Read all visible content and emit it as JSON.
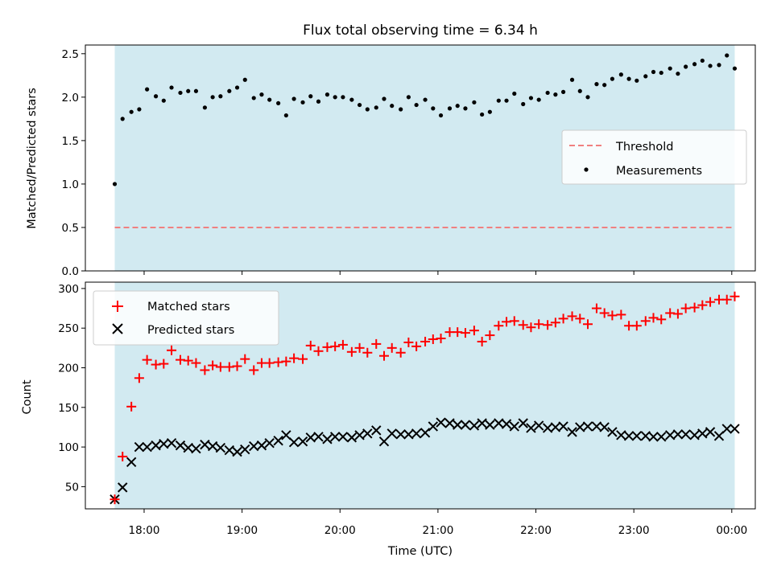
{
  "chart_data": {
    "title": "Flux total observing time = 6.34 h",
    "xlabel": "Time (UTC)",
    "x_ticks": [
      "18:00",
      "19:00",
      "20:00",
      "21:00",
      "22:00",
      "23:00",
      "00:00"
    ],
    "x_range_hours": [
      17.4,
      24.24
    ],
    "observing_window_hours": [
      17.7,
      24.03
    ],
    "colors": {
      "window": "#add8e6",
      "measurements": "#000000",
      "threshold": "#f08080",
      "matched": "#ff0000",
      "predicted": "#000000"
    },
    "panels": [
      {
        "type": "scatter",
        "ylabel": "Matched/Predicted stars",
        "ylim": [
          0,
          2.6
        ],
        "y_ticks": [
          "0.0",
          "0.5",
          "1.0",
          "1.5",
          "2.0",
          "2.5"
        ],
        "threshold": 0.5,
        "legend": {
          "placement": "center-right",
          "entries": [
            "Threshold",
            "Measurements"
          ]
        },
        "series": [
          {
            "name": "Measurements",
            "x": [
              17.7,
              17.78,
              17.87,
              17.95,
              18.03,
              18.12,
              18.2,
              18.28,
              18.37,
              18.45,
              18.53,
              18.62,
              18.7,
              18.78,
              18.87,
              18.95,
              19.03,
              19.12,
              19.2,
              19.28,
              19.37,
              19.45,
              19.53,
              19.62,
              19.7,
              19.78,
              19.87,
              19.95,
              20.03,
              20.12,
              20.2,
              20.28,
              20.37,
              20.45,
              20.53,
              20.62,
              20.7,
              20.78,
              20.87,
              20.95,
              21.03,
              21.12,
              21.2,
              21.28,
              21.37,
              21.45,
              21.53,
              21.62,
              21.7,
              21.78,
              21.87,
              21.95,
              22.03,
              22.12,
              22.2,
              22.28,
              22.37,
              22.45,
              22.53,
              22.62,
              22.7,
              22.78,
              22.87,
              22.95,
              23.03,
              23.12,
              23.2,
              23.28,
              23.37,
              23.45,
              23.53,
              23.62,
              23.7,
              23.78,
              23.87,
              23.95,
              24.03
            ],
            "y": [
              1.0,
              1.75,
              1.83,
              1.86,
              2.09,
              2.01,
              1.96,
              2.11,
              2.05,
              2.07,
              2.07,
              1.88,
              2.0,
              2.01,
              2.07,
              2.11,
              2.2,
              1.99,
              2.03,
              1.97,
              1.93,
              1.79,
              1.98,
              1.94,
              2.01,
              1.95,
              2.03,
              2.0,
              2.0,
              1.97,
              1.91,
              1.86,
              1.88,
              1.98,
              1.9,
              1.86,
              2.0,
              1.91,
              1.97,
              1.87,
              1.79,
              1.87,
              1.9,
              1.87,
              1.94,
              1.8,
              1.83,
              1.96,
              1.96,
              2.04,
              1.92,
              1.99,
              1.97,
              2.05,
              2.03,
              2.06,
              2.2,
              2.07,
              2.0,
              2.15,
              2.14,
              2.21,
              2.26,
              2.21,
              2.19,
              2.24,
              2.29,
              2.28,
              2.33,
              2.27,
              2.35,
              2.38,
              2.42,
              2.36,
              2.37,
              2.48,
              2.33
            ]
          }
        ]
      },
      {
        "type": "scatter",
        "ylabel": "Count",
        "ylim": [
          22,
          308
        ],
        "y_ticks": [
          "50",
          "100",
          "150",
          "200",
          "250",
          "300"
        ],
        "legend": {
          "placement": "top-left",
          "entries": [
            "Matched stars",
            "Predicted stars"
          ]
        },
        "series": [
          {
            "name": "Matched stars",
            "marker": "plus",
            "x": [
              17.7,
              17.78,
              17.87,
              17.95,
              18.03,
              18.12,
              18.2,
              18.28,
              18.37,
              18.45,
              18.53,
              18.62,
              18.7,
              18.78,
              18.87,
              18.95,
              19.03,
              19.12,
              19.2,
              19.28,
              19.37,
              19.45,
              19.53,
              19.62,
              19.7,
              19.78,
              19.87,
              19.95,
              20.03,
              20.12,
              20.2,
              20.28,
              20.37,
              20.45,
              20.53,
              20.62,
              20.7,
              20.78,
              20.87,
              20.95,
              21.03,
              21.12,
              21.2,
              21.28,
              21.37,
              21.45,
              21.53,
              21.62,
              21.7,
              21.78,
              21.87,
              21.95,
              22.03,
              22.12,
              22.2,
              22.28,
              22.37,
              22.45,
              22.53,
              22.62,
              22.7,
              22.78,
              22.87,
              22.95,
              23.03,
              23.12,
              23.2,
              23.28,
              23.37,
              23.45,
              23.53,
              23.62,
              23.7,
              23.78,
              23.87,
              23.95,
              24.03
            ],
            "y": [
              34,
              88,
              151,
              187,
              210,
              204,
              205,
              222,
              210,
              209,
              206,
              197,
              203,
              201,
              201,
              202,
              211,
              197,
              206,
              206,
              207,
              208,
              212,
              211,
              228,
              221,
              226,
              227,
              229,
              220,
              225,
              219,
              230,
              215,
              225,
              219,
              232,
              227,
              233,
              236,
              237,
              245,
              245,
              244,
              247,
              233,
              241,
              253,
              258,
              259,
              254,
              251,
              255,
              254,
              257,
              262,
              265,
              262,
              255,
              275,
              269,
              266,
              267,
              253,
              253,
              259,
              263,
              261,
              269,
              268,
              275,
              276,
              279,
              283,
              286,
              286,
              290
            ]
          },
          {
            "name": "Predicted stars",
            "marker": "x",
            "x": [
              17.7,
              17.78,
              17.87,
              17.95,
              18.03,
              18.12,
              18.2,
              18.28,
              18.37,
              18.45,
              18.53,
              18.62,
              18.7,
              18.78,
              18.87,
              18.95,
              19.03,
              19.12,
              19.2,
              19.28,
              19.37,
              19.45,
              19.53,
              19.62,
              19.7,
              19.78,
              19.87,
              19.95,
              20.03,
              20.12,
              20.2,
              20.28,
              20.37,
              20.45,
              20.53,
              20.62,
              20.7,
              20.78,
              20.87,
              20.95,
              21.03,
              21.12,
              21.2,
              21.28,
              21.37,
              21.45,
              21.53,
              21.62,
              21.7,
              21.78,
              21.87,
              21.95,
              22.03,
              22.12,
              22.2,
              22.28,
              22.37,
              22.45,
              22.53,
              22.62,
              22.7,
              22.78,
              22.87,
              22.95,
              23.03,
              23.12,
              23.2,
              23.28,
              23.37,
              23.45,
              23.53,
              23.62,
              23.7,
              23.78,
              23.87,
              23.95,
              24.03
            ],
            "y": [
              34,
              49,
              81,
              100,
              100,
              102,
              104,
              105,
              102,
              99,
              98,
              103,
              101,
              99,
              96,
              94,
              97,
              101,
              102,
              105,
              108,
              115,
              106,
              107,
              112,
              113,
              110,
              113,
              113,
              112,
              115,
              117,
              121,
              107,
              117,
              116,
              116,
              117,
              118,
              126,
              131,
              130,
              128,
              128,
              127,
              130,
              128,
              130,
              129,
              126,
              130,
              124,
              127,
              124,
              125,
              126,
              119,
              125,
              126,
              126,
              125,
              119,
              115,
              114,
              114,
              114,
              113,
              113,
              115,
              116,
              116,
              115,
              117,
              119,
              114,
              123,
              123
            ]
          }
        ]
      }
    ]
  }
}
